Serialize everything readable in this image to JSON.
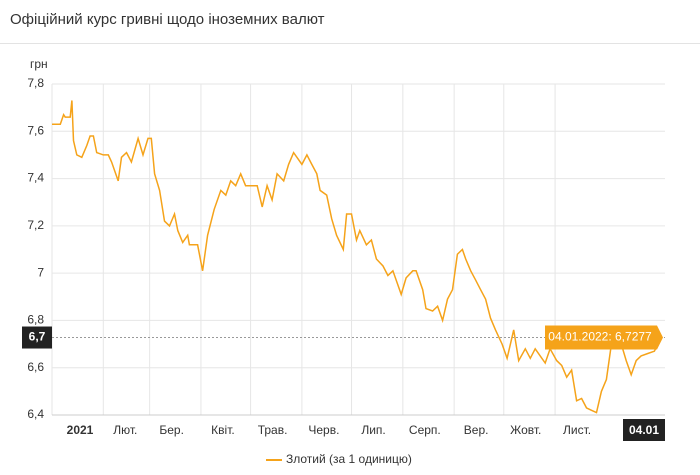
{
  "header": {
    "title": "Офіційний курс гривні щодо іноземних валют"
  },
  "chart_data": {
    "type": "line",
    "y_label": "грн",
    "xlim": [
      0,
      368
    ],
    "xticks": [
      {
        "value": 0,
        "label": "2021"
      },
      {
        "value": 31,
        "label": "Лют."
      },
      {
        "value": 59,
        "label": "Бер."
      },
      {
        "value": 90,
        "label": "Квіт."
      },
      {
        "value": 120,
        "label": "Трав."
      },
      {
        "value": 151,
        "label": "Черв."
      },
      {
        "value": 181,
        "label": "Лип."
      },
      {
        "value": 212,
        "label": "Серп."
      },
      {
        "value": 243,
        "label": "Вер."
      },
      {
        "value": 273,
        "label": "Жовт."
      },
      {
        "value": 304,
        "label": "Лист."
      },
      {
        "value": 368,
        "label": "04.01"
      }
    ],
    "ylim": [
      6.4,
      7.8
    ],
    "yticks": [
      {
        "value": 6.4,
        "label": "6,4"
      },
      {
        "value": 6.6,
        "label": "6,6"
      },
      {
        "value": 6.8,
        "label": "6,8"
      },
      7,
      {
        "value": 7.2,
        "label": "7,2"
      },
      {
        "value": 7.4,
        "label": "7,4"
      },
      {
        "value": 7.6,
        "label": "7,6"
      },
      {
        "value": 7.8,
        "label": "7,8"
      }
    ],
    "grid": true,
    "crosshair": {
      "value": 6.7277,
      "label": "6,7"
    },
    "annotation": "04.01.2022: 6,7277",
    "series": [
      {
        "name": "Злотий (за 1 одиницю)",
        "color": "#f5a31a",
        "x": [
          0,
          5,
          7,
          8,
          11,
          12,
          13,
          15,
          18,
          21,
          23,
          25,
          27,
          31,
          34,
          36,
          40,
          42,
          45,
          48,
          52,
          55,
          58,
          60,
          62,
          65,
          68,
          71,
          74,
          76,
          79,
          82,
          83,
          88,
          91,
          94,
          98,
          102,
          105,
          108,
          111,
          114,
          117,
          120,
          124,
          127,
          130,
          133,
          136,
          140,
          143,
          146,
          149,
          151,
          154,
          157,
          160,
          162,
          166,
          169,
          172,
          176,
          178,
          181,
          184,
          186,
          190,
          193,
          196,
          200,
          203,
          206,
          209,
          211,
          214,
          218,
          220,
          224,
          226,
          230,
          233,
          236,
          239,
          242,
          245,
          248,
          250,
          253,
          256,
          259,
          262,
          265,
          268,
          272,
          275,
          279,
          282,
          286,
          289,
          292,
          295,
          298,
          301,
          305,
          308,
          311,
          314,
          317,
          320,
          323,
          326,
          329,
          332,
          335,
          338,
          341,
          344,
          347,
          350,
          353,
          356,
          360,
          364,
          368
        ],
        "values": [
          7.63,
          7.63,
          7.67,
          7.66,
          7.66,
          7.73,
          7.56,
          7.5,
          7.49,
          7.54,
          7.58,
          7.58,
          7.51,
          7.5,
          7.5,
          7.47,
          7.39,
          7.49,
          7.51,
          7.47,
          7.57,
          7.5,
          7.57,
          7.57,
          7.42,
          7.35,
          7.22,
          7.2,
          7.25,
          7.18,
          7.13,
          7.16,
          7.12,
          7.12,
          7.01,
          7.16,
          7.27,
          7.35,
          7.33,
          7.39,
          7.37,
          7.42,
          7.37,
          7.37,
          7.37,
          7.28,
          7.37,
          7.31,
          7.42,
          7.39,
          7.46,
          7.51,
          7.48,
          7.46,
          7.5,
          7.46,
          7.42,
          7.35,
          7.33,
          7.23,
          7.16,
          7.1,
          7.25,
          7.25,
          7.14,
          7.18,
          7.12,
          7.14,
          7.06,
          7.03,
          6.99,
          7.01,
          6.95,
          6.91,
          6.98,
          7.01,
          7.01,
          6.93,
          6.85,
          6.84,
          6.86,
          6.8,
          6.89,
          6.93,
          7.08,
          7.1,
          7.06,
          7.01,
          6.97,
          6.93,
          6.89,
          6.81,
          6.76,
          6.7,
          6.64,
          6.76,
          6.63,
          6.68,
          6.64,
          6.68,
          6.65,
          6.62,
          6.68,
          6.63,
          6.61,
          6.56,
          6.59,
          6.46,
          6.47,
          6.43,
          6.42,
          6.41,
          6.5,
          6.55,
          6.7,
          6.72,
          6.7,
          6.63,
          6.57,
          6.63,
          6.65,
          6.66,
          6.67,
          6.7277
        ]
      }
    ]
  }
}
